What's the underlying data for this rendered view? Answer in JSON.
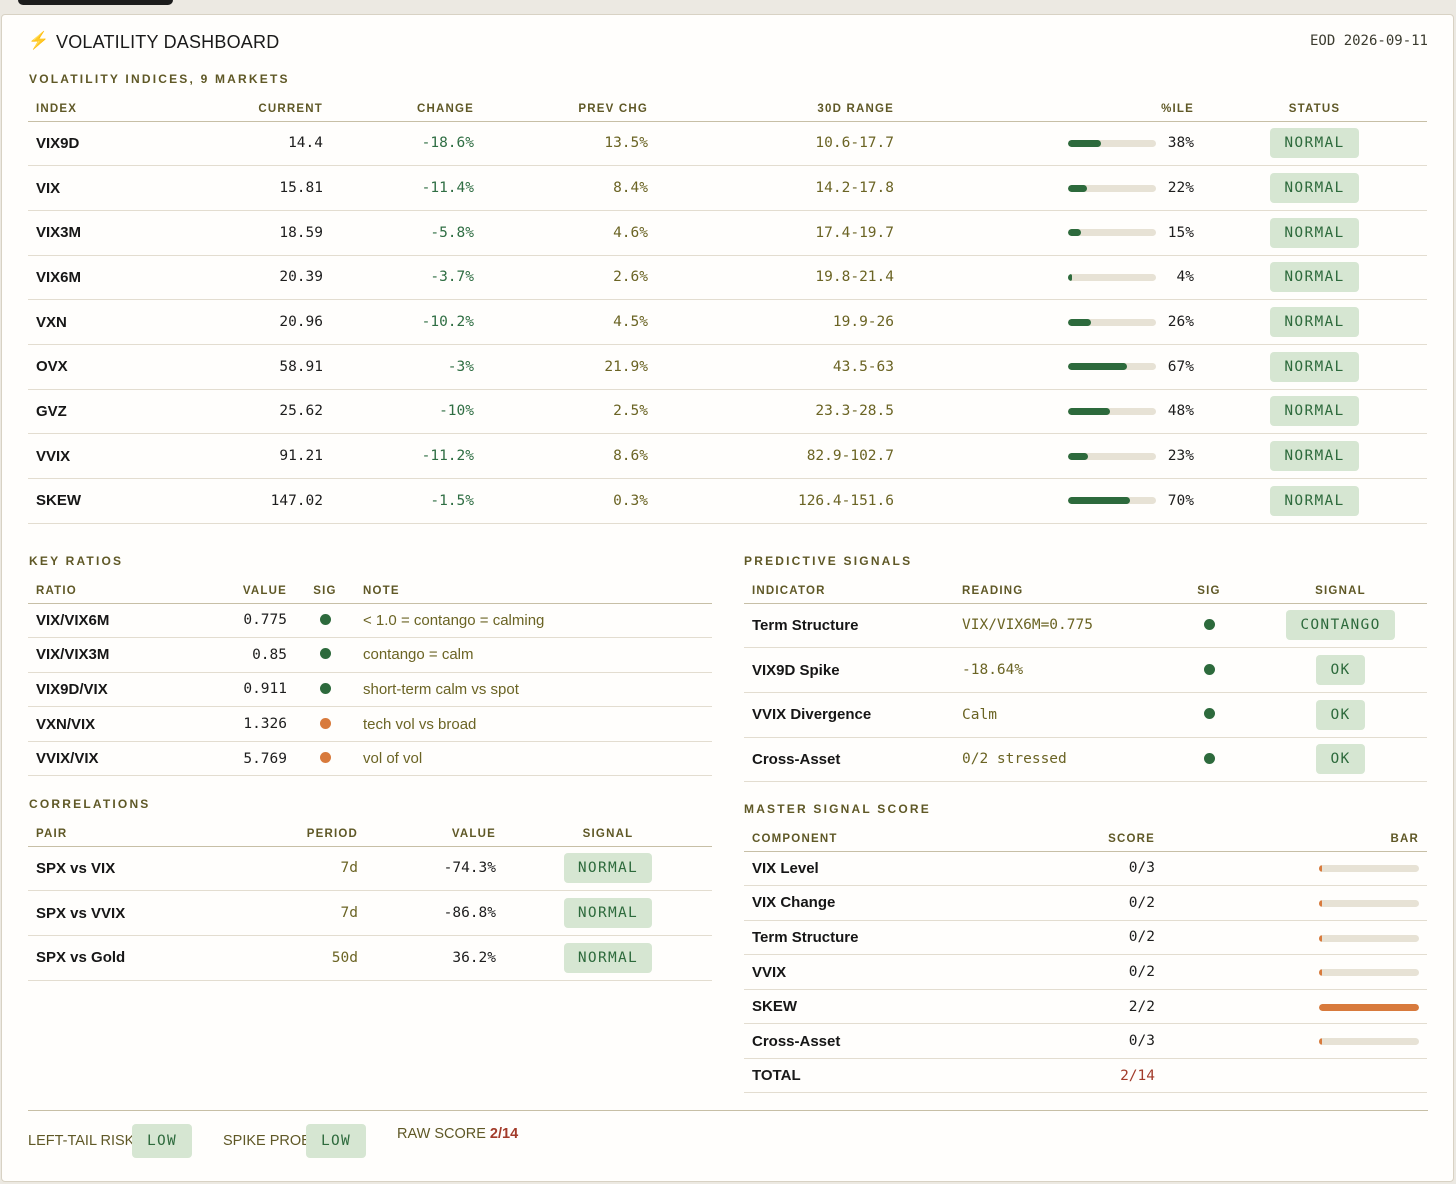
{
  "header": {
    "icon": "lightning-bolt-icon",
    "title": "VOLATILITY DASHBOARD",
    "eod": "EOD 2026-09-11"
  },
  "indices": {
    "section_title": "VOLATILITY INDICES, 9 MARKETS",
    "columns": [
      "INDEX",
      "CURRENT",
      "CHANGE",
      "PREV CHG",
      "30D RANGE",
      "%ILE",
      "STATUS"
    ],
    "rows": [
      {
        "index": "VIX9D",
        "current": "14.4",
        "change": "-18.6%",
        "prev": "13.5%",
        "range": "10.6-17.7",
        "pct": "38%",
        "pct_value": 0.38,
        "status": "NORMAL"
      },
      {
        "index": "VIX",
        "current": "15.81",
        "change": "-11.4%",
        "prev": "8.4%",
        "range": "14.2-17.8",
        "pct": "22%",
        "pct_value": 0.22,
        "status": "NORMAL"
      },
      {
        "index": "VIX3M",
        "current": "18.59",
        "change": "-5.8%",
        "prev": "4.6%",
        "range": "17.4-19.7",
        "pct": "15%",
        "pct_value": 0.15,
        "status": "NORMAL"
      },
      {
        "index": "VIX6M",
        "current": "20.39",
        "change": "-3.7%",
        "prev": "2.6%",
        "range": "19.8-21.4",
        "pct": "4%",
        "pct_value": 0.04,
        "status": "NORMAL"
      },
      {
        "index": "VXN",
        "current": "20.96",
        "change": "-10.2%",
        "prev": "4.5%",
        "range": "19.9-26",
        "pct": "26%",
        "pct_value": 0.26,
        "status": "NORMAL"
      },
      {
        "index": "OVX",
        "current": "58.91",
        "change": "-3%",
        "prev": "21.9%",
        "range": "43.5-63",
        "pct": "67%",
        "pct_value": 0.67,
        "status": "NORMAL"
      },
      {
        "index": "GVZ",
        "current": "25.62",
        "change": "-10%",
        "prev": "2.5%",
        "range": "23.3-28.5",
        "pct": "48%",
        "pct_value": 0.48,
        "status": "NORMAL"
      },
      {
        "index": "VVIX",
        "current": "91.21",
        "change": "-11.2%",
        "prev": "8.6%",
        "range": "82.9-102.7",
        "pct": "23%",
        "pct_value": 0.23,
        "status": "NORMAL"
      },
      {
        "index": "SKEW",
        "current": "147.02",
        "change": "-1.5%",
        "prev": "0.3%",
        "range": "126.4-151.6",
        "pct": "70%",
        "pct_value": 0.7,
        "status": "NORMAL"
      }
    ]
  },
  "ratios": {
    "section_title": "KEY RATIOS",
    "columns": [
      "RATIO",
      "VALUE",
      "SIG",
      "NOTE"
    ],
    "rows": [
      {
        "ratio": "VIX/VIX6M",
        "value": "0.775",
        "sig": "green",
        "note": "< 1.0 = contango = calming"
      },
      {
        "ratio": "VIX/VIX3M",
        "value": "0.85",
        "sig": "green",
        "note": "contango = calm"
      },
      {
        "ratio": "VIX9D/VIX",
        "value": "0.911",
        "sig": "green",
        "note": "short-term calm vs spot"
      },
      {
        "ratio": "VXN/VIX",
        "value": "1.326",
        "sig": "orange",
        "note": "tech vol vs broad"
      },
      {
        "ratio": "VVIX/VIX",
        "value": "5.769",
        "sig": "orange",
        "note": "vol of vol"
      }
    ]
  },
  "correlations": {
    "section_title": "CORRELATIONS",
    "columns": [
      "PAIR",
      "PERIOD",
      "VALUE",
      "SIGNAL"
    ],
    "rows": [
      {
        "pair": "SPX vs VIX",
        "period": "7d",
        "value": "-74.3%",
        "signal": "NORMAL"
      },
      {
        "pair": "SPX vs VVIX",
        "period": "7d",
        "value": "-86.8%",
        "signal": "NORMAL"
      },
      {
        "pair": "SPX vs Gold",
        "period": "50d",
        "value": "36.2%",
        "signal": "NORMAL"
      }
    ]
  },
  "predictive": {
    "section_title": "PREDICTIVE SIGNALS",
    "columns": [
      "INDICATOR",
      "READING",
      "SIG",
      "SIGNAL"
    ],
    "rows": [
      {
        "indicator": "Term Structure",
        "reading": "VIX/VIX6M=0.775",
        "sig": "green",
        "signal": "CONTANGO"
      },
      {
        "indicator": "VIX9D Spike",
        "reading": "-18.64%",
        "sig": "green",
        "signal": "OK"
      },
      {
        "indicator": "VVIX Divergence",
        "reading": "Calm",
        "sig": "green",
        "signal": "OK"
      },
      {
        "indicator": "Cross-Asset",
        "reading": "0/2 stressed",
        "sig": "green",
        "signal": "OK"
      }
    ]
  },
  "master": {
    "section_title": "MASTER SIGNAL SCORE",
    "columns": [
      "COMPONENT",
      "SCORE",
      "BAR"
    ],
    "rows": [
      {
        "component": "VIX Level",
        "score": "0/3",
        "fill": 0.0
      },
      {
        "component": "VIX Change",
        "score": "0/2",
        "fill": 0.0
      },
      {
        "component": "Term Structure",
        "score": "0/2",
        "fill": 0.0
      },
      {
        "component": "VVIX",
        "score": "0/2",
        "fill": 0.0
      },
      {
        "component": "SKEW",
        "score": "2/2",
        "fill": 1.0
      },
      {
        "component": "Cross-Asset",
        "score": "0/3",
        "fill": 0.0
      }
    ],
    "total_label": "TOTAL",
    "total_score": "2/14"
  },
  "footer": {
    "left_tail_label": "LEFT-TAIL RISK",
    "left_tail_value": "LOW",
    "spike_label": "SPIKE PROB",
    "spike_value": "LOW",
    "raw_label": "RAW SCORE",
    "raw_value": "2/14"
  },
  "colors": {
    "accent_green": "#2d6a3c",
    "badge_bg": "#d6e6d2",
    "accent_orange": "#d87a3c",
    "olive_text": "#5f5826",
    "alert_red": "#a23b2a"
  }
}
